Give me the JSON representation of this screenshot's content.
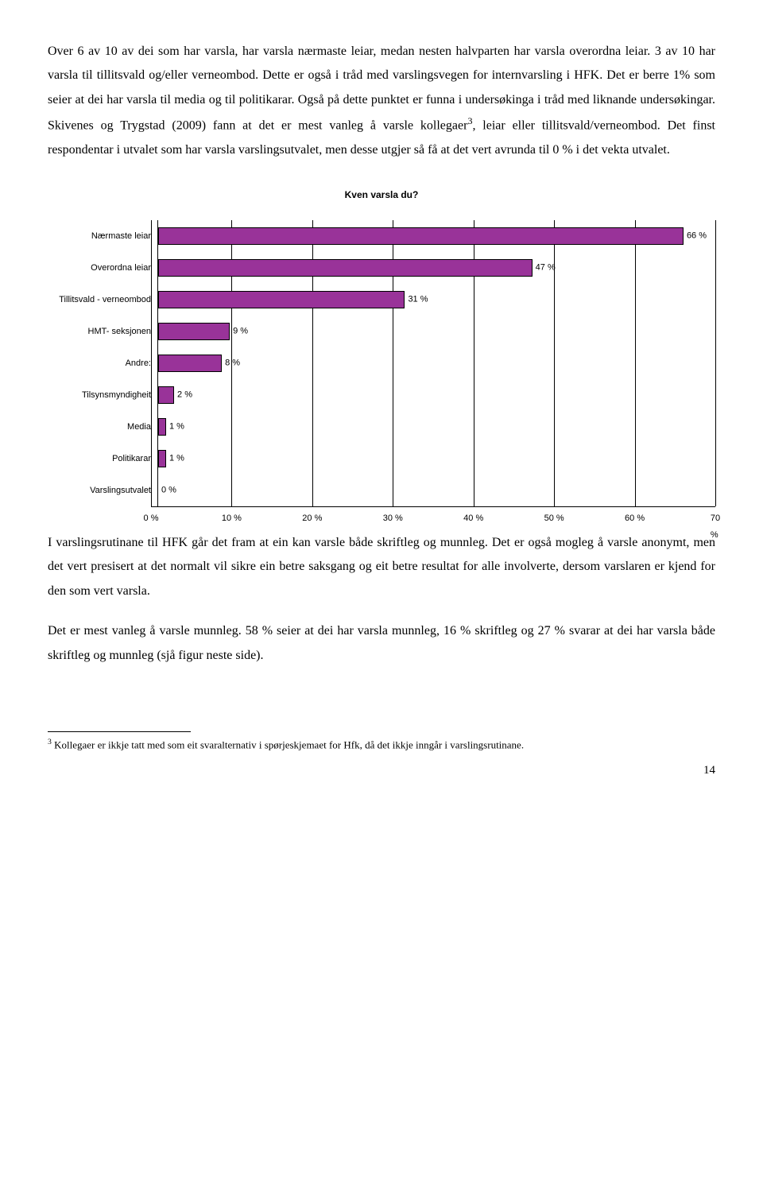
{
  "paragraphs": {
    "p1": "Over 6 av 10 av dei som har varsla, har varsla nærmaste leiar, medan nesten halvparten har varsla overordna leiar. 3 av 10 har varsla til  tillitsvald og/eller verneombod. Dette er også i tråd med varslingsvegen for internvarsling i HFK. Det er berre 1% som seier at dei har varsla til media og til politikarar. Også på dette punktet er funna i undersøkinga i tråd med liknande undersøkingar. Skivenes og Trygstad (2009) fann at det er mest vanleg å varsle kollegaer",
    "p1_after_sup": ", leiar eller tillitsvald/verneombod. Det finst respondentar i utvalet som har varsla varslingsutvalet, men desse utgjer så få at det vert avrunda til 0 % i det vekta utvalet.",
    "p2": "I varslingsrutinane til HFK går det fram at ein kan varsle både skriftleg og munnleg. Det er også mogleg å varsle anonymt, men det vert presisert at  det normalt vil sikre ein betre saksgang og eit betre resultat for alle involverte, dersom varslaren er kjend for den som vert varsla.",
    "p3": "Det er mest vanleg å varsle munnleg. 58 % seier at dei har varsla munnleg, 16 % skriftleg og 27 % svarar at dei har varsla både skriftleg og munnleg (sjå figur neste side)."
  },
  "chart": {
    "title": "Kven varsla du?",
    "xmax": 70,
    "xtick_step": 10,
    "xticks": [
      "0 %",
      "10 %",
      "20 %",
      "30 %",
      "40 %",
      "50 %",
      "60 %",
      "70 %"
    ],
    "bar_color": "#993399",
    "categories": [
      {
        "label": "Nærmaste leiar",
        "value": 66,
        "text": "66 %"
      },
      {
        "label": "Overordna leiar",
        "value": 47,
        "text": "47 %"
      },
      {
        "label": "Tillitsvald - verneombod",
        "value": 31,
        "text": "31 %"
      },
      {
        "label": "HMT- seksjonen",
        "value": 9,
        "text": "9 %"
      },
      {
        "label": "Andre:",
        "value": 8,
        "text": "8 %"
      },
      {
        "label": "Tilsynsmyndigheit",
        "value": 2,
        "text": "2 %"
      },
      {
        "label": "Media",
        "value": 1,
        "text": "1 %"
      },
      {
        "label": "Politikarar",
        "value": 1,
        "text": "1 %"
      },
      {
        "label": "Varslingsutvalet",
        "value": 0,
        "text": "0 %"
      }
    ]
  },
  "footnote": {
    "marker": "3",
    "text": " Kollegaer er ikkje tatt med som eit svaralternativ i spørjeskjemaet for Hfk, då det ikkje inngår i varslingsrutinane."
  },
  "page_number": "14"
}
